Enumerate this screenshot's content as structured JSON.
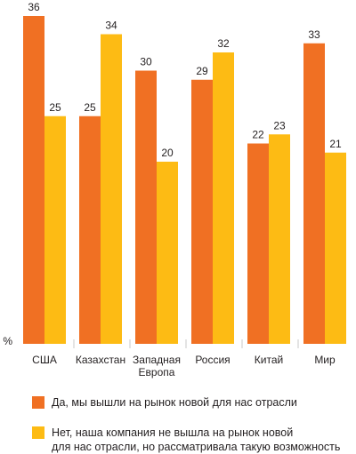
{
  "chart_data": {
    "type": "bar",
    "categories": [
      "США",
      "Казахстан",
      "Западная\nЕвропа",
      "Россия",
      "Китай",
      "Мир"
    ],
    "series": [
      {
        "name": "Да, мы вышли на рынок новой для нас отрасли",
        "values": [
          36,
          25,
          30,
          29,
          22,
          33
        ]
      },
      {
        "name": "Нет, наша компания не вышла на рынок новой\nдля нас отрасли, но рассматривала такую возможность",
        "values": [
          25,
          34,
          20,
          32,
          23,
          21
        ]
      }
    ],
    "ylabel": "%",
    "ylim": [
      0,
      36
    ],
    "show_data_labels": true,
    "yaxis_line": false,
    "grid": false,
    "legend_position": "bottom",
    "colors": [
      "#f07023",
      "#fdbb14"
    ],
    "separator_color": "#c8c8c8"
  }
}
